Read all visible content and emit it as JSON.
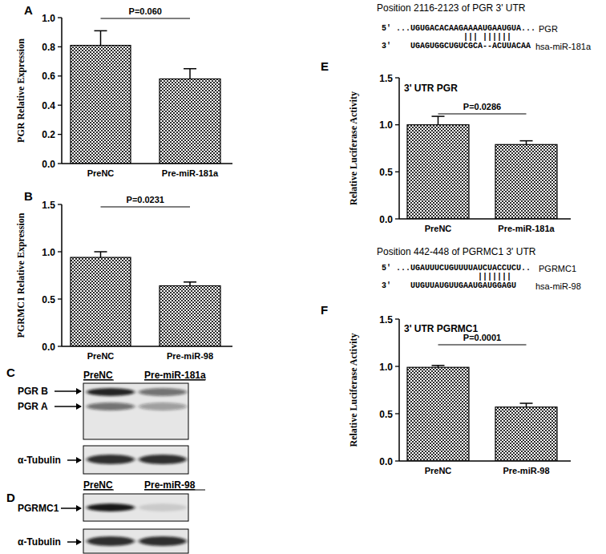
{
  "chart_data": [
    {
      "type": "bar",
      "panel_label": "A",
      "y_label": "PGR Relative Expression",
      "categories": [
        "PreNC",
        "Pre-miR-181a"
      ],
      "values": [
        0.81,
        0.58
      ],
      "errors": [
        0.1,
        0.07
      ],
      "color": "#2b2b2b",
      "ylim": [
        0,
        1
      ],
      "yticks": [
        {
          "value": 0,
          "label": "0.0"
        },
        0.2,
        0.4,
        0.6,
        0.8,
        {
          "value": 1,
          "label": "1.0"
        }
      ],
      "annotations": [
        "P=0.060"
      ]
    },
    {
      "type": "bar",
      "panel_label": "B",
      "y_label": "PGRMC1 Relative Expression",
      "categories": [
        "PreNC",
        "Pre-miR-98"
      ],
      "values": [
        0.94,
        0.64
      ],
      "errors": [
        0.06,
        0.04
      ],
      "color": "#2b2b2b",
      "ylim": [
        0,
        1.5
      ],
      "yticks": [
        {
          "value": 0,
          "label": "0.0"
        },
        0.5,
        {
          "value": 1,
          "label": "1.0"
        },
        1.5
      ],
      "annotations": [
        "P=0.0231"
      ]
    },
    {
      "type": "bar",
      "panel_label": "E",
      "title": "3' UTR PGR",
      "y_label": "Relative Luciferase Activity",
      "categories": [
        "PreNC",
        "Pre-miR-181a"
      ],
      "values": [
        1.0,
        0.79
      ],
      "errors": [
        0.09,
        0.04
      ],
      "color": "#2b2b2b",
      "ylim": [
        0,
        1.5
      ],
      "yticks": [
        {
          "value": 0,
          "label": "0.0"
        },
        0.5,
        {
          "value": 1,
          "label": "1.0"
        },
        1.5
      ],
      "annotations": [
        "P=0.0286"
      ]
    },
    {
      "type": "bar",
      "panel_label": "F",
      "title": "3' UTR PGRMC1",
      "y_label": "Relative Luciferase Activity",
      "categories": [
        "PreNC",
        "Pre-miR-98"
      ],
      "values": [
        0.99,
        0.57
      ],
      "errors": [
        0.02,
        0.04
      ],
      "color": "#2b2b2b",
      "ylim": [
        0,
        1.5
      ],
      "yticks": [
        {
          "value": 0,
          "label": "0.0"
        },
        0.5,
        {
          "value": 1,
          "label": "1.0"
        },
        1.5
      ],
      "annotations": [
        "P=0.0001"
      ]
    }
  ],
  "blots": [
    {
      "panel_label": "C",
      "lanes": [
        "PreNC",
        "Pre-miR-181a"
      ],
      "bands": [
        "PGR B",
        "PGR A"
      ],
      "loading": "α-Tubulin"
    },
    {
      "panel_label": "D",
      "lanes": [
        "PreNC",
        "Pre-miR-98"
      ],
      "bands": [
        "PGRMC1"
      ],
      "loading": "α-Tubulin"
    }
  ],
  "alignments": [
    {
      "title": "Position 2116-2123 of PGR 3' UTR",
      "target": "5' ...UGUGACACAAGAAAAUGAAUGUA...",
      "pairs": "                 ||| ||||||",
      "mirna": "3'    UGAGUGGCUGUCGCA--ACUUACAA",
      "target_name": "PGR",
      "mirna_name": "hsa-miR-181a"
    },
    {
      "title": "Position 442-448 of PGRMC1 3' UTR",
      "target": "5' ...UGAUUUCUGUUUUAUCUACCUCU..",
      "pairs": "                    |||||||",
      "mirna": "3'    UUGUUAUGUUGAAUGAUGGAGU",
      "target_name": "PGRMC1",
      "mirna_name": "hsa-miR-98"
    }
  ]
}
